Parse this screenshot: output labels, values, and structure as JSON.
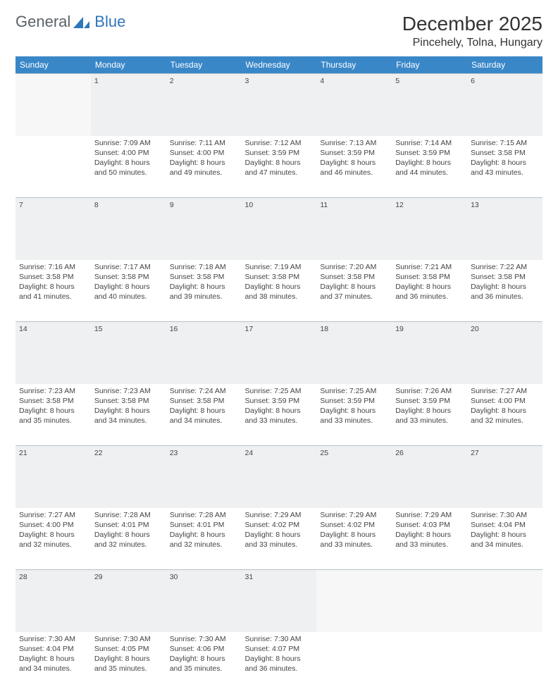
{
  "logo": {
    "text1": "General",
    "text2": "Blue"
  },
  "title": "December 2025",
  "location": "Pincehely, Tolna, Hungary",
  "colors": {
    "header_bg": "#3a87c8",
    "daynum_bg": "#eef0f1",
    "daynum_border": "#b8c2c9",
    "text": "#444444",
    "logo_gray": "#5a6268",
    "logo_blue": "#2f76bb"
  },
  "typography": {
    "title_fontsize": 28,
    "location_fontsize": 16,
    "header_fontsize": 12,
    "daynum_fontsize": 12,
    "cell_fontsize": 10.5
  },
  "weekdays": [
    "Sunday",
    "Monday",
    "Tuesday",
    "Wednesday",
    "Thursday",
    "Friday",
    "Saturday"
  ],
  "weeks": [
    [
      null,
      {
        "n": "1",
        "sunrise": "7:09 AM",
        "sunset": "4:00 PM",
        "daylight": "8 hours and 50 minutes."
      },
      {
        "n": "2",
        "sunrise": "7:11 AM",
        "sunset": "4:00 PM",
        "daylight": "8 hours and 49 minutes."
      },
      {
        "n": "3",
        "sunrise": "7:12 AM",
        "sunset": "3:59 PM",
        "daylight": "8 hours and 47 minutes."
      },
      {
        "n": "4",
        "sunrise": "7:13 AM",
        "sunset": "3:59 PM",
        "daylight": "8 hours and 46 minutes."
      },
      {
        "n": "5",
        "sunrise": "7:14 AM",
        "sunset": "3:59 PM",
        "daylight": "8 hours and 44 minutes."
      },
      {
        "n": "6",
        "sunrise": "7:15 AM",
        "sunset": "3:58 PM",
        "daylight": "8 hours and 43 minutes."
      }
    ],
    [
      {
        "n": "7",
        "sunrise": "7:16 AM",
        "sunset": "3:58 PM",
        "daylight": "8 hours and 41 minutes."
      },
      {
        "n": "8",
        "sunrise": "7:17 AM",
        "sunset": "3:58 PM",
        "daylight": "8 hours and 40 minutes."
      },
      {
        "n": "9",
        "sunrise": "7:18 AM",
        "sunset": "3:58 PM",
        "daylight": "8 hours and 39 minutes."
      },
      {
        "n": "10",
        "sunrise": "7:19 AM",
        "sunset": "3:58 PM",
        "daylight": "8 hours and 38 minutes."
      },
      {
        "n": "11",
        "sunrise": "7:20 AM",
        "sunset": "3:58 PM",
        "daylight": "8 hours and 37 minutes."
      },
      {
        "n": "12",
        "sunrise": "7:21 AM",
        "sunset": "3:58 PM",
        "daylight": "8 hours and 36 minutes."
      },
      {
        "n": "13",
        "sunrise": "7:22 AM",
        "sunset": "3:58 PM",
        "daylight": "8 hours and 36 minutes."
      }
    ],
    [
      {
        "n": "14",
        "sunrise": "7:23 AM",
        "sunset": "3:58 PM",
        "daylight": "8 hours and 35 minutes."
      },
      {
        "n": "15",
        "sunrise": "7:23 AM",
        "sunset": "3:58 PM",
        "daylight": "8 hours and 34 minutes."
      },
      {
        "n": "16",
        "sunrise": "7:24 AM",
        "sunset": "3:58 PM",
        "daylight": "8 hours and 34 minutes."
      },
      {
        "n": "17",
        "sunrise": "7:25 AM",
        "sunset": "3:59 PM",
        "daylight": "8 hours and 33 minutes."
      },
      {
        "n": "18",
        "sunrise": "7:25 AM",
        "sunset": "3:59 PM",
        "daylight": "8 hours and 33 minutes."
      },
      {
        "n": "19",
        "sunrise": "7:26 AM",
        "sunset": "3:59 PM",
        "daylight": "8 hours and 33 minutes."
      },
      {
        "n": "20",
        "sunrise": "7:27 AM",
        "sunset": "4:00 PM",
        "daylight": "8 hours and 32 minutes."
      }
    ],
    [
      {
        "n": "21",
        "sunrise": "7:27 AM",
        "sunset": "4:00 PM",
        "daylight": "8 hours and 32 minutes."
      },
      {
        "n": "22",
        "sunrise": "7:28 AM",
        "sunset": "4:01 PM",
        "daylight": "8 hours and 32 minutes."
      },
      {
        "n": "23",
        "sunrise": "7:28 AM",
        "sunset": "4:01 PM",
        "daylight": "8 hours and 32 minutes."
      },
      {
        "n": "24",
        "sunrise": "7:29 AM",
        "sunset": "4:02 PM",
        "daylight": "8 hours and 33 minutes."
      },
      {
        "n": "25",
        "sunrise": "7:29 AM",
        "sunset": "4:02 PM",
        "daylight": "8 hours and 33 minutes."
      },
      {
        "n": "26",
        "sunrise": "7:29 AM",
        "sunset": "4:03 PM",
        "daylight": "8 hours and 33 minutes."
      },
      {
        "n": "27",
        "sunrise": "7:30 AM",
        "sunset": "4:04 PM",
        "daylight": "8 hours and 34 minutes."
      }
    ],
    [
      {
        "n": "28",
        "sunrise": "7:30 AM",
        "sunset": "4:04 PM",
        "daylight": "8 hours and 34 minutes."
      },
      {
        "n": "29",
        "sunrise": "7:30 AM",
        "sunset": "4:05 PM",
        "daylight": "8 hours and 35 minutes."
      },
      {
        "n": "30",
        "sunrise": "7:30 AM",
        "sunset": "4:06 PM",
        "daylight": "8 hours and 35 minutes."
      },
      {
        "n": "31",
        "sunrise": "7:30 AM",
        "sunset": "4:07 PM",
        "daylight": "8 hours and 36 minutes."
      },
      null,
      null,
      null
    ]
  ],
  "labels": {
    "sunrise": "Sunrise:",
    "sunset": "Sunset:",
    "daylight": "Daylight:"
  }
}
